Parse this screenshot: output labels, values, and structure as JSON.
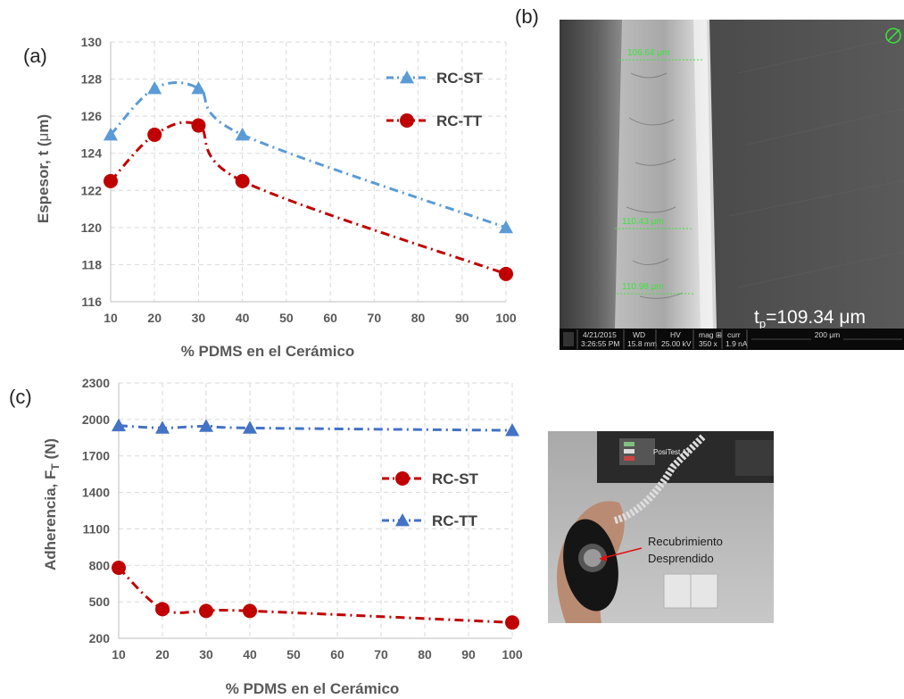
{
  "panel_labels": {
    "a": "(a)",
    "b": "(b)",
    "c": "(c)"
  },
  "chart_data": [
    {
      "type": "line",
      "panel": "(a)",
      "xlabel": "% PDMS en el Cerámico",
      "ylabel_main": "Espesor, t (",
      "ylabel_mu": "μ",
      "ylabel_tail": "m)",
      "x": [
        10,
        20,
        30,
        40,
        100
      ],
      "xlim": [
        10,
        100
      ],
      "xticks": [
        10,
        20,
        30,
        40,
        50,
        60,
        70,
        80,
        90,
        100
      ],
      "ylim": [
        116,
        130
      ],
      "yticks": [
        116,
        118,
        120,
        122,
        124,
        126,
        128,
        130
      ],
      "grid": true,
      "legend_position": "top-right",
      "series": [
        {
          "name": "RC-ST",
          "marker": "triangle",
          "color": "#5b9bd5",
          "values": [
            125,
            127.5,
            127.5,
            125,
            120
          ]
        },
        {
          "name": "RC-TT",
          "marker": "circle",
          "color": "#c00000",
          "values": [
            122.5,
            125,
            125.5,
            122.5,
            117.5
          ]
        }
      ]
    },
    {
      "type": "line",
      "panel": "(c)",
      "xlabel": "% PDMS en el Cerámico",
      "ylabel_main": "Adherencia, F",
      "ylabel_sub": "T",
      "ylabel_tail": " (N)",
      "x": [
        10,
        20,
        30,
        40,
        100
      ],
      "xlim": [
        10,
        100
      ],
      "xticks": [
        10,
        20,
        30,
        40,
        50,
        60,
        70,
        80,
        90,
        100
      ],
      "ylim": [
        200,
        2300
      ],
      "yticks": [
        200,
        500,
        800,
        1100,
        1400,
        1700,
        2000,
        2300
      ],
      "grid": true,
      "legend_position": "center-right",
      "series": [
        {
          "name": "RC-ST",
          "marker": "circle",
          "color": "#c00000",
          "values": [
            780,
            440,
            425,
            425,
            330
          ]
        },
        {
          "name": "RC-TT",
          "marker": "triangle",
          "color": "#4472c4",
          "values": [
            1950,
            1930,
            1945,
            1930,
            1910
          ]
        }
      ]
    }
  ],
  "sem_image": {
    "measurements": [
      "106.64 μm",
      "110.43 μm",
      "110.98 μm"
    ],
    "thickness_main": "t",
    "thickness_sub": "p",
    "thickness_value": "=109.34 μm",
    "info_bar": {
      "date": "4/21/2015",
      "time": "3:26:55 PM",
      "wd_label": "WD",
      "wd_value": "15.8 mm",
      "hv_label": "HV",
      "hv_value": "25.00 kV",
      "mag_label": "mag ⊞",
      "mag_value": "350 x",
      "curr_label": "curr",
      "curr_value": "1.9 nA",
      "scale_label": "200 μm"
    }
  },
  "photo": {
    "device_brand": "PosiTest AT",
    "annotation_line1": "Recubrimiento",
    "annotation_line2": "Desprendido"
  }
}
